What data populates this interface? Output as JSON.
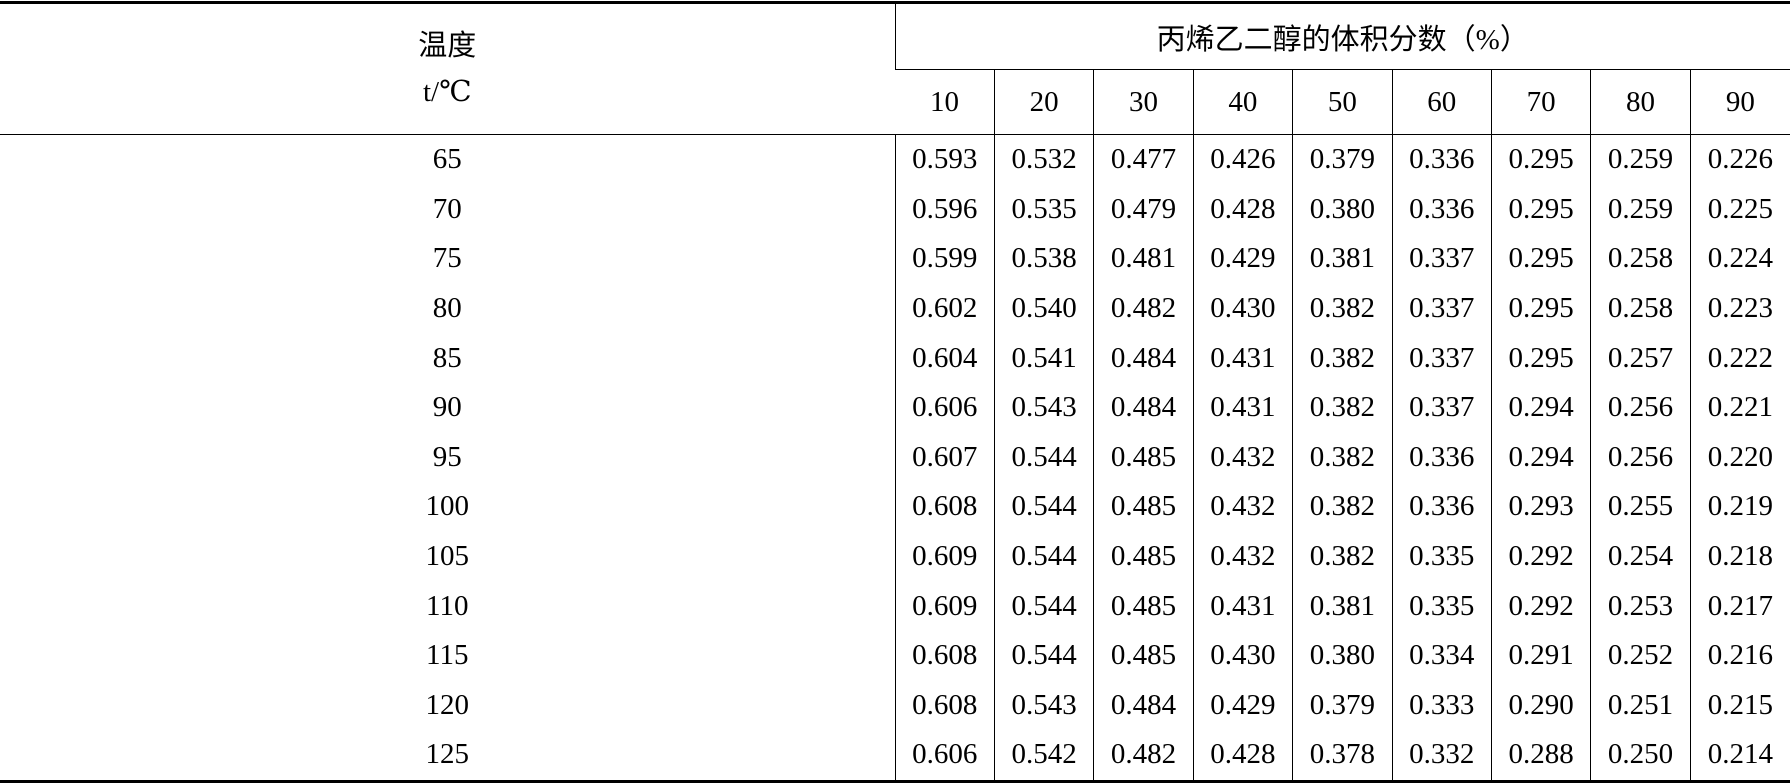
{
  "table": {
    "header": {
      "temp_label": "温度",
      "temp_unit": "t/℃",
      "group_title": "丙烯乙二醇的体积分数（%）",
      "columns": [
        "10",
        "20",
        "30",
        "40",
        "50",
        "60",
        "70",
        "80",
        "90"
      ]
    },
    "rows": [
      [
        "65",
        "0.593",
        "0.532",
        "0.477",
        "0.426",
        "0.379",
        "0.336",
        "0.295",
        "0.259",
        "0.226"
      ],
      [
        "70",
        "0.596",
        "0.535",
        "0.479",
        "0.428",
        "0.380",
        "0.336",
        "0.295",
        "0.259",
        "0.225"
      ],
      [
        "75",
        "0.599",
        "0.538",
        "0.481",
        "0.429",
        "0.381",
        "0.337",
        "0.295",
        "0.258",
        "0.224"
      ],
      [
        "80",
        "0.602",
        "0.540",
        "0.482",
        "0.430",
        "0.382",
        "0.337",
        "0.295",
        "0.258",
        "0.223"
      ],
      [
        "85",
        "0.604",
        "0.541",
        "0.484",
        "0.431",
        "0.382",
        "0.337",
        "0.295",
        "0.257",
        "0.222"
      ],
      [
        "90",
        "0.606",
        "0.543",
        "0.484",
        "0.431",
        "0.382",
        "0.337",
        "0.294",
        "0.256",
        "0.221"
      ],
      [
        "95",
        "0.607",
        "0.544",
        "0.485",
        "0.432",
        "0.382",
        "0.336",
        "0.294",
        "0.256",
        "0.220"
      ],
      [
        "100",
        "0.608",
        "0.544",
        "0.485",
        "0.432",
        "0.382",
        "0.336",
        "0.293",
        "0.255",
        "0.219"
      ],
      [
        "105",
        "0.609",
        "0.544",
        "0.485",
        "0.432",
        "0.382",
        "0.335",
        "0.292",
        "0.254",
        "0.218"
      ],
      [
        "110",
        "0.609",
        "0.544",
        "0.485",
        "0.431",
        "0.381",
        "0.335",
        "0.292",
        "0.253",
        "0.217"
      ],
      [
        "115",
        "0.608",
        "0.544",
        "0.485",
        "0.430",
        "0.380",
        "0.334",
        "0.291",
        "0.252",
        "0.216"
      ],
      [
        "120",
        "0.608",
        "0.543",
        "0.484",
        "0.429",
        "0.379",
        "0.333",
        "0.290",
        "0.251",
        "0.215"
      ],
      [
        "125",
        "0.606",
        "0.542",
        "0.482",
        "0.428",
        "0.378",
        "0.332",
        "0.288",
        "0.250",
        "0.214"
      ]
    ]
  }
}
